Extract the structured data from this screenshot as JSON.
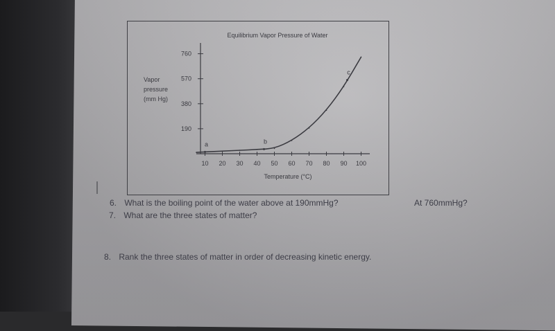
{
  "chart_data": {
    "type": "line",
    "title": "Equilibrium Vapor Pressure of Water",
    "ylabel_lines": [
      "Vapor",
      "pressure",
      "(mm Hg)"
    ],
    "xlabel": "Temperature (°C)",
    "x_ticks": [
      10,
      20,
      30,
      40,
      50,
      60,
      70,
      80,
      90,
      100
    ],
    "y_ticks": [
      190,
      380,
      570,
      760
    ],
    "xlim": [
      5,
      105
    ],
    "ylim": [
      0,
      800
    ],
    "series": [
      {
        "x": [
          5,
          10,
          20,
          30,
          40,
          50,
          60,
          70,
          80,
          90,
          100
        ],
        "y": [
          10,
          14,
          20,
          26,
          32,
          40,
          100,
          195,
          330,
          510,
          735
        ]
      }
    ],
    "annotations": [
      {
        "label": "a",
        "x": 10,
        "y": 14
      },
      {
        "label": "b",
        "x": 44,
        "y": 35
      },
      {
        "label": "c",
        "x": 92,
        "y": 560
      }
    ],
    "grid": false
  },
  "questions": [
    {
      "number": "6.",
      "text": "What is the boiling point of the water above at 190mmHg?"
    },
    {
      "number": "7.",
      "text": "What are the three states of matter?"
    },
    {
      "number": "8.",
      "text": "Rank the three states of matter in order of decreasing kinetic energy."
    }
  ],
  "side_note": "At 760mmHg?"
}
